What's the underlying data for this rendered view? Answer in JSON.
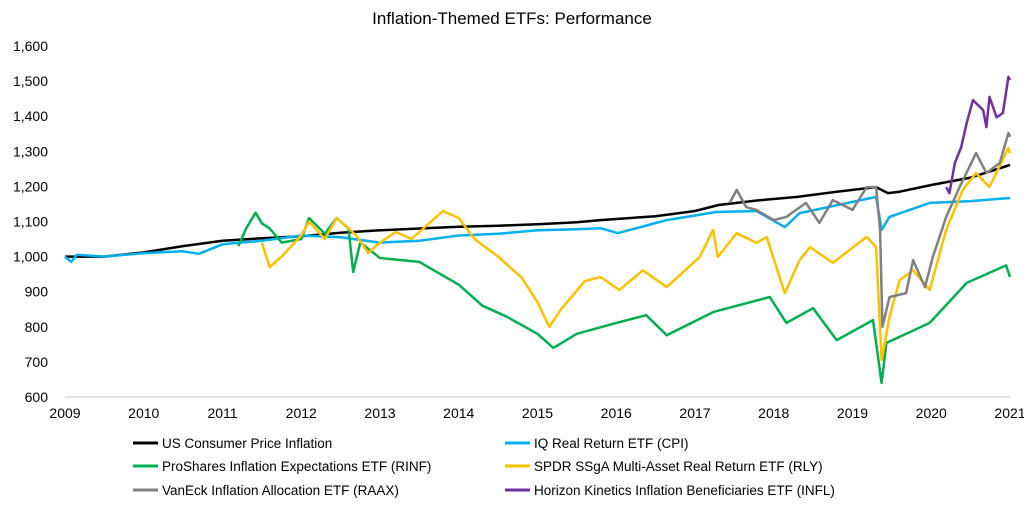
{
  "chart_data": {
    "type": "line",
    "title": "Inflation-Themed ETFs: Performance",
    "xlabel": "",
    "ylabel": "",
    "xlim": [
      2009,
      2021
    ],
    "ylim": [
      600,
      1600
    ],
    "xticks": [
      "2009",
      "2010",
      "2011",
      "2012",
      "2013",
      "2014",
      "2015",
      "2016",
      "2017",
      "2018",
      "2019",
      "2020",
      "2021"
    ],
    "yticks": [
      "600",
      "700",
      "800",
      "900",
      "1,000",
      "1,100",
      "1,200",
      "1,300",
      "1,400",
      "1,500",
      "1,600"
    ],
    "grid": false,
    "legend_placement": "bottom",
    "series": [
      {
        "name": "US Consumer Price Inflation",
        "color": "#000000",
        "points": [
          [
            2009,
            1000
          ],
          [
            2009.5,
            1000
          ],
          [
            2010,
            1012
          ],
          [
            2010.5,
            1030
          ],
          [
            2011,
            1045
          ],
          [
            2011.5,
            1052
          ],
          [
            2012,
            1058
          ],
          [
            2012.5,
            1068
          ],
          [
            2013,
            1075
          ],
          [
            2013.5,
            1080
          ],
          [
            2014,
            1085
          ],
          [
            2014.5,
            1088
          ],
          [
            2015,
            1092
          ],
          [
            2015.5,
            1098
          ],
          [
            2015.8,
            1104
          ],
          [
            2016.5,
            1115
          ],
          [
            2017,
            1130
          ],
          [
            2017.3,
            1147
          ],
          [
            2017.8,
            1160
          ],
          [
            2018.3,
            1170
          ],
          [
            2018.8,
            1185
          ],
          [
            2019.3,
            1198
          ],
          [
            2019.45,
            1181
          ],
          [
            2019.6,
            1185
          ],
          [
            2020,
            1204
          ],
          [
            2020.5,
            1225
          ],
          [
            2021,
            1261
          ]
        ]
      },
      {
        "name": "IQ Real Return ETF (CPI)",
        "color": "#00b0f0",
        "points": [
          [
            2009,
            1000
          ],
          [
            2009.08,
            985
          ],
          [
            2009.15,
            1005
          ],
          [
            2009.5,
            1000
          ],
          [
            2010,
            1010
          ],
          [
            2010.5,
            1015
          ],
          [
            2010.7,
            1008
          ],
          [
            2011,
            1035
          ],
          [
            2011.5,
            1045
          ],
          [
            2012,
            1060
          ],
          [
            2012.5,
            1055
          ],
          [
            2013,
            1040
          ],
          [
            2013.5,
            1045
          ],
          [
            2014,
            1060
          ],
          [
            2014.5,
            1065
          ],
          [
            2015,
            1075
          ],
          [
            2015.5,
            1078
          ],
          [
            2015.8,
            1081
          ],
          [
            2016.02,
            1067
          ],
          [
            2016.64,
            1104
          ],
          [
            2017.27,
            1127
          ],
          [
            2017.78,
            1130
          ],
          [
            2018.14,
            1084
          ],
          [
            2018.33,
            1124
          ],
          [
            2019.3,
            1170
          ],
          [
            2019.37,
            1076
          ],
          [
            2019.47,
            1113
          ],
          [
            2019.98,
            1153
          ],
          [
            2020.5,
            1158
          ],
          [
            2021,
            1167
          ]
        ]
      },
      {
        "name": "ProShares Inflation Expectations ETF (RINF)",
        "color": "#00b050",
        "points": [
          [
            2011.2,
            1030
          ],
          [
            2011.3,
            1080
          ],
          [
            2011.42,
            1125
          ],
          [
            2011.5,
            1095
          ],
          [
            2011.6,
            1080
          ],
          [
            2011.75,
            1040
          ],
          [
            2012,
            1050
          ],
          [
            2012.1,
            1110
          ],
          [
            2012.3,
            1065
          ],
          [
            2012.45,
            1110
          ],
          [
            2012.6,
            1080
          ],
          [
            2012.66,
            956
          ],
          [
            2012.75,
            1040
          ],
          [
            2013,
            996
          ],
          [
            2013.5,
            985
          ],
          [
            2014,
            920
          ],
          [
            2014.3,
            860
          ],
          [
            2014.6,
            830
          ],
          [
            2015,
            780
          ],
          [
            2015.2,
            740
          ],
          [
            2015.5,
            780
          ],
          [
            2016,
            811
          ],
          [
            2016.38,
            833
          ],
          [
            2016.64,
            776
          ],
          [
            2017.23,
            842
          ],
          [
            2017.95,
            885
          ],
          [
            2018.16,
            811
          ],
          [
            2018.5,
            853
          ],
          [
            2018.8,
            762
          ],
          [
            2019.26,
            819
          ],
          [
            2019.37,
            640
          ],
          [
            2019.43,
            754
          ],
          [
            2019.98,
            811
          ],
          [
            2020.45,
            925
          ],
          [
            2020.95,
            975
          ],
          [
            2021,
            942
          ]
        ]
      },
      {
        "name": "SPDR SSgA Multi-Asset Real Return ETF (RLY)",
        "color": "#ffc000",
        "points": [
          [
            2011.5,
            1040
          ],
          [
            2011.6,
            970
          ],
          [
            2011.75,
            1000
          ],
          [
            2012,
            1060
          ],
          [
            2012.1,
            1100
          ],
          [
            2012.3,
            1050
          ],
          [
            2012.45,
            1110
          ],
          [
            2012.7,
            1060
          ],
          [
            2012.85,
            1010
          ],
          [
            2013,
            1040
          ],
          [
            2013.2,
            1070
          ],
          [
            2013.4,
            1050
          ],
          [
            2013.7,
            1110
          ],
          [
            2013.8,
            1130
          ],
          [
            2014,
            1110
          ],
          [
            2014.2,
            1050
          ],
          [
            2014.5,
            1000
          ],
          [
            2014.8,
            940
          ],
          [
            2015,
            870
          ],
          [
            2015.15,
            800
          ],
          [
            2015.3,
            850
          ],
          [
            2015.6,
            930
          ],
          [
            2015.8,
            942
          ],
          [
            2016.04,
            905
          ],
          [
            2016.34,
            961
          ],
          [
            2016.64,
            913
          ],
          [
            2017.06,
            999
          ],
          [
            2017.23,
            1076
          ],
          [
            2017.29,
            999
          ],
          [
            2017.53,
            1067
          ],
          [
            2017.78,
            1039
          ],
          [
            2017.91,
            1056
          ],
          [
            2018.14,
            896
          ],
          [
            2018.33,
            990
          ],
          [
            2018.46,
            1027
          ],
          [
            2018.75,
            982
          ],
          [
            2019.18,
            1056
          ],
          [
            2019.3,
            1027
          ],
          [
            2019.37,
            705
          ],
          [
            2019.47,
            828
          ],
          [
            2019.6,
            933
          ],
          [
            2019.77,
            961
          ],
          [
            2019.98,
            905
          ],
          [
            2020.19,
            1076
          ],
          [
            2020.4,
            1190
          ],
          [
            2020.57,
            1238
          ],
          [
            2020.74,
            1198
          ],
          [
            2020.98,
            1309
          ],
          [
            2021,
            1295
          ]
        ]
      },
      {
        "name": "VanEck Inflation Allocation ETF (RAAX)",
        "color": "#808080",
        "points": [
          [
            2017.44,
            1153
          ],
          [
            2017.53,
            1190
          ],
          [
            2017.65,
            1141
          ],
          [
            2017.78,
            1133
          ],
          [
            2018.0,
            1104
          ],
          [
            2018.16,
            1113
          ],
          [
            2018.41,
            1153
          ],
          [
            2018.58,
            1096
          ],
          [
            2018.75,
            1161
          ],
          [
            2019.0,
            1133
          ],
          [
            2019.18,
            1198
          ],
          [
            2019.3,
            1198
          ],
          [
            2019.35,
            1076
          ],
          [
            2019.38,
            800
          ],
          [
            2019.47,
            885
          ],
          [
            2019.68,
            896
          ],
          [
            2019.77,
            990
          ],
          [
            2019.92,
            913
          ],
          [
            2020.02,
            999
          ],
          [
            2020.19,
            1113
          ],
          [
            2020.36,
            1198
          ],
          [
            2020.57,
            1295
          ],
          [
            2020.7,
            1238
          ],
          [
            2020.87,
            1267
          ],
          [
            2020.98,
            1352
          ],
          [
            2021,
            1341
          ]
        ]
      },
      {
        "name": "Horizon Kinetics Inflation Beneficiaries ETF (INFL)",
        "color": "#7030a0",
        "points": [
          [
            2020.19,
            1198
          ],
          [
            2020.23,
            1181
          ],
          [
            2020.3,
            1267
          ],
          [
            2020.38,
            1312
          ],
          [
            2020.45,
            1381
          ],
          [
            2020.53,
            1446
          ],
          [
            2020.66,
            1417
          ],
          [
            2020.7,
            1369
          ],
          [
            2020.74,
            1455
          ],
          [
            2020.83,
            1397
          ],
          [
            2020.91,
            1409
          ],
          [
            2020.98,
            1512
          ],
          [
            2021,
            1503
          ]
        ]
      }
    ]
  }
}
